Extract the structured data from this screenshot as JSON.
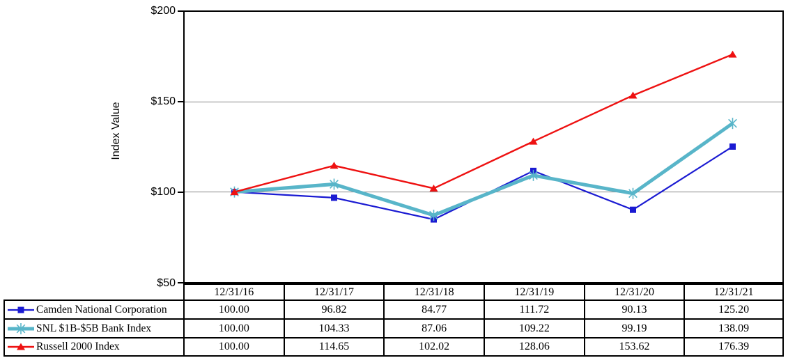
{
  "chart_data": {
    "type": "line",
    "ylabel": "Index Value",
    "ylim": [
      50,
      200
    ],
    "y_tick_values": [
      200,
      150,
      100,
      50
    ],
    "y_tick_labels": [
      "$200",
      "$150",
      "$100",
      "$50"
    ],
    "gridline_values": [
      150,
      100
    ],
    "grid": "horizontal-only",
    "legend_position": "table-left",
    "categories": [
      "12/31/16",
      "12/31/17",
      "12/31/18",
      "12/31/19",
      "12/31/20",
      "12/31/21"
    ],
    "series": [
      {
        "name": "Camden National Corporation",
        "values": [
          "100.00",
          "96.82",
          "84.77",
          "111.72",
          "90.13",
          "125.20"
        ],
        "color": "#1A1AD2",
        "marker": "square",
        "line_width": 2.2
      },
      {
        "name": "SNL $1B-$5B Bank Index",
        "values": [
          "100.00",
          "104.33",
          "87.06",
          "109.22",
          "99.19",
          "138.09"
        ],
        "color": "#58B5C9",
        "marker": "asterisk",
        "line_width": 5
      },
      {
        "name": "Russell 2000 Index",
        "values": [
          "100.00",
          "114.65",
          "102.02",
          "128.06",
          "153.62",
          "176.39"
        ],
        "color": "#EE1111",
        "marker": "triangle",
        "line_width": 2.4
      }
    ],
    "colors": {
      "axis": "#000000",
      "gridline": "#8C8C8C",
      "background": "#FFFFFF"
    }
  }
}
